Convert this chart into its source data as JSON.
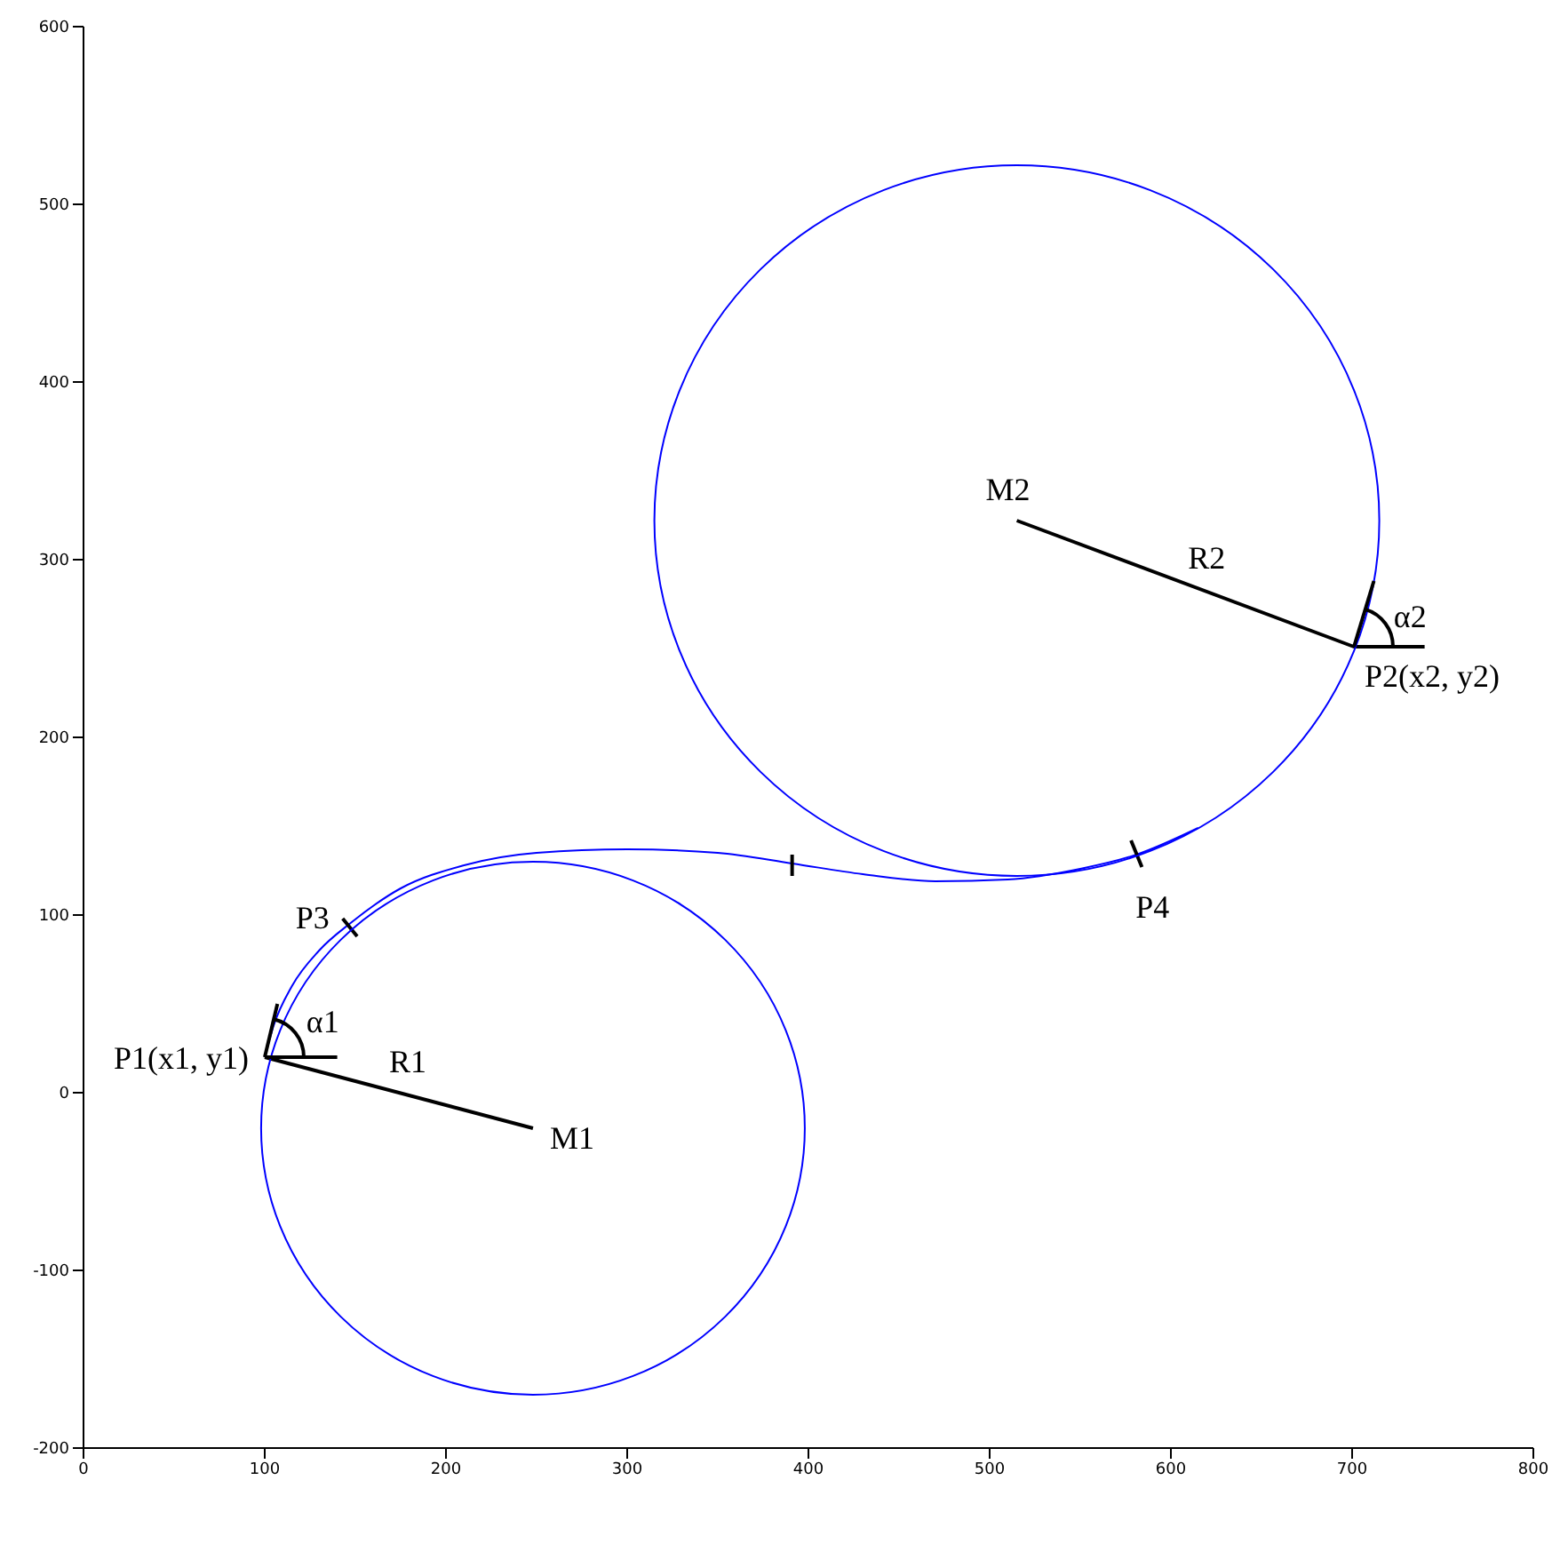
{
  "chart_data": {
    "type": "line",
    "xlim": [
      0,
      800
    ],
    "ylim": [
      -200,
      600
    ],
    "xticks": [
      0,
      100,
      200,
      300,
      400,
      500,
      600,
      700,
      800
    ],
    "yticks": [
      -200,
      -100,
      0,
      100,
      200,
      300,
      400,
      500,
      600
    ],
    "line_style": "solid",
    "series": [
      {
        "color": "#0000ff",
        "x": [
          100,
          105,
          115,
          130,
          148,
          175,
          210,
          250,
          300,
          350,
          391,
          430,
          470,
          510,
          550,
          581,
          615
        ],
        "values": [
          20,
          38,
          60,
          80,
          96,
          115,
          128,
          135,
          137,
          135,
          129,
          123,
          119,
          120,
          126,
          134,
          149
        ]
      },
      {
        "color": "#000000",
        "x": [
          100,
          248
        ],
        "values": [
          20,
          -20
        ]
      },
      {
        "color": "#000000",
        "x": [
          515,
          701,
          740
        ],
        "values": [
          322,
          251,
          251
        ]
      },
      {
        "color": "#000000",
        "x": [
          143,
          151
        ],
        "values": [
          98,
          88
        ]
      },
      {
        "color": "#000000",
        "x": [
          391,
          391
        ],
        "values": [
          134,
          122
        ]
      },
      {
        "color": "#000000",
        "x": [
          578,
          584
        ],
        "values": [
          142,
          127
        ]
      }
    ],
    "annotations": [
      {
        "text": "M1",
        "x": 248,
        "y": -20
      },
      {
        "text": "M2",
        "x": 515,
        "y": 322
      },
      {
        "text": "R1",
        "x": 174,
        "y": 0
      },
      {
        "text": "R2",
        "x": 608,
        "y": 286.5
      },
      {
        "text": "P1(x1, y1)",
        "x": 100,
        "y": 20
      },
      {
        "text": "P2(x2, y2)",
        "x": 701,
        "y": 251
      },
      {
        "text": "P3",
        "x": 147,
        "y": 93
      },
      {
        "text": "P4",
        "x": 581,
        "y": 134
      },
      "α1",
      "α2"
    ]
  }
}
